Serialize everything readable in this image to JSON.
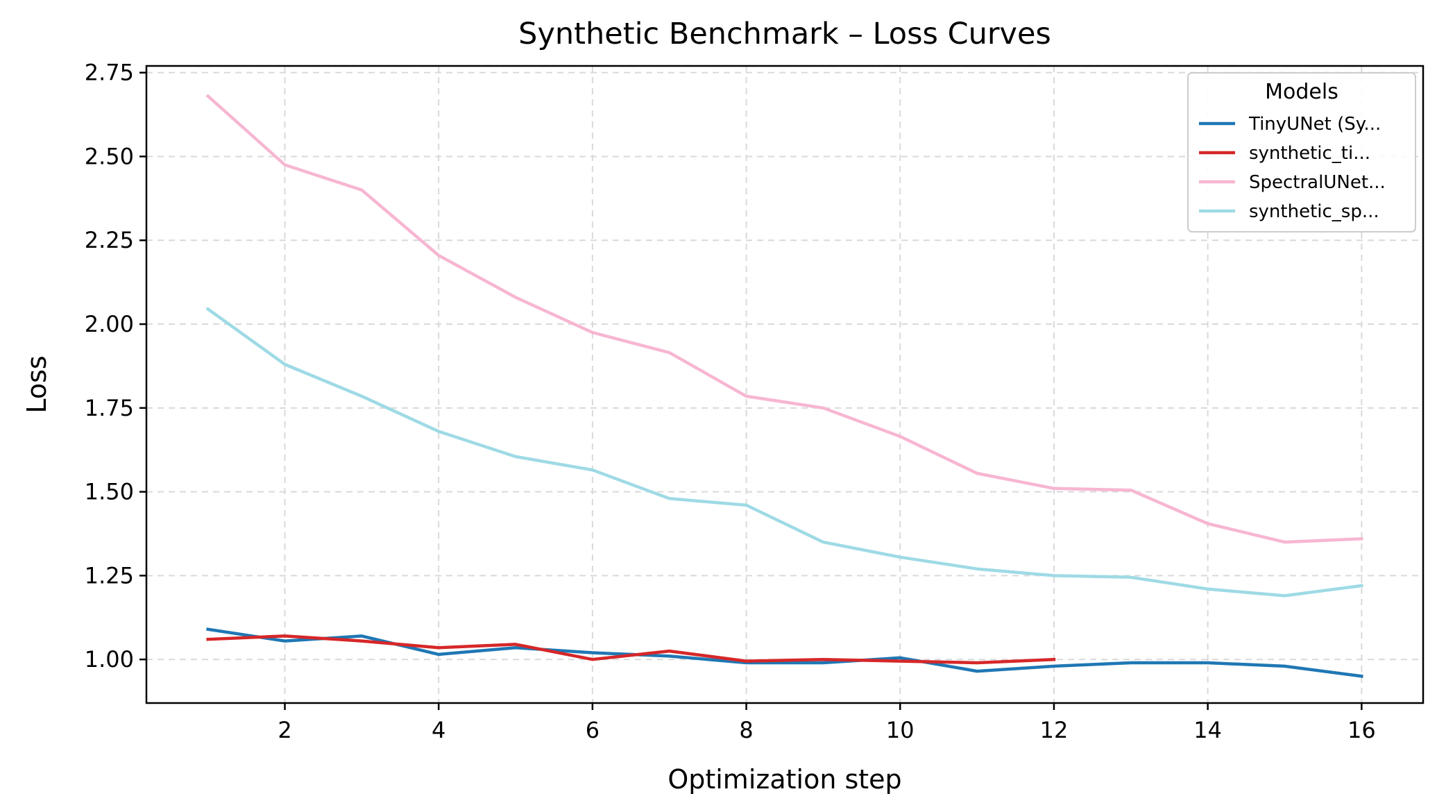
{
  "chart_data": {
    "type": "line",
    "title": "Synthetic Benchmark – Loss Curves",
    "xlabel": "Optimization step",
    "ylabel": "Loss",
    "xlim": [
      0.2,
      16.8
    ],
    "ylim": [
      0.87,
      2.77
    ],
    "xticks": [
      2,
      4,
      6,
      8,
      10,
      12,
      14,
      16
    ],
    "xtick_labels": [
      "2",
      "4",
      "6",
      "8",
      "10",
      "12",
      "14",
      "16"
    ],
    "yticks": [
      1.0,
      1.25,
      1.5,
      1.75,
      2.0,
      2.25,
      2.5,
      2.75
    ],
    "ytick_labels": [
      "1.00",
      "1.25",
      "1.50",
      "1.75",
      "2.00",
      "2.25",
      "2.50",
      "2.75"
    ],
    "grid": true,
    "legend": {
      "title": "Models",
      "placement": "top-right"
    },
    "series": [
      {
        "name": "TinyUNet (Sy...",
        "color": "#1f77b4",
        "x": [
          1,
          2,
          3,
          4,
          5,
          6,
          7,
          8,
          9,
          10,
          11,
          12,
          13,
          14,
          15,
          16
        ],
        "y": [
          1.09,
          1.055,
          1.07,
          1.015,
          1.035,
          1.02,
          1.01,
          0.99,
          0.99,
          1.005,
          0.965,
          0.98,
          0.99,
          0.99,
          0.98,
          0.95
        ]
      },
      {
        "name": "synthetic_ti...",
        "color": "#d62728",
        "x": [
          1,
          2,
          3,
          4,
          5,
          6,
          7,
          8,
          9,
          10,
          11,
          12
        ],
        "y": [
          1.06,
          1.07,
          1.055,
          1.035,
          1.045,
          1.0,
          1.025,
          0.995,
          1.0,
          0.995,
          0.99,
          1.0
        ]
      },
      {
        "name": "SpectralUNet...",
        "color": "#f7b6d2",
        "x": [
          1,
          2,
          3,
          4,
          5,
          6,
          7,
          8,
          9,
          10,
          11,
          12,
          13,
          14,
          15,
          16
        ],
        "y": [
          2.68,
          2.475,
          2.4,
          2.205,
          2.08,
          1.975,
          1.915,
          1.785,
          1.75,
          1.665,
          1.555,
          1.51,
          1.505,
          1.405,
          1.35,
          1.36
        ]
      },
      {
        "name": "synthetic_sp...",
        "color": "#9edae5",
        "x": [
          1,
          2,
          3,
          4,
          5,
          6,
          7,
          8,
          9,
          10,
          11,
          12,
          13,
          14,
          15,
          16
        ],
        "y": [
          2.045,
          1.88,
          1.785,
          1.68,
          1.605,
          1.565,
          1.48,
          1.46,
          1.35,
          1.305,
          1.27,
          1.25,
          1.245,
          1.21,
          1.19,
          1.22
        ]
      }
    ]
  }
}
